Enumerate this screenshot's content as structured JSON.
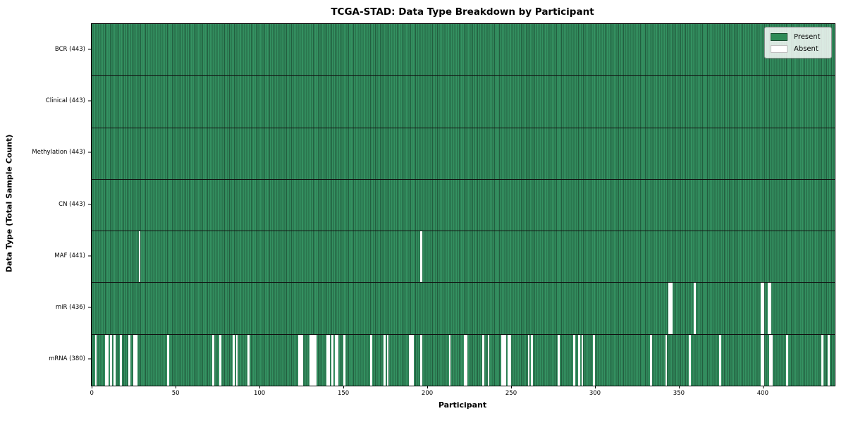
{
  "chart_data": {
    "type": "heatmap",
    "title": "TCGA-STAD: Data Type Breakdown by Participant",
    "xlabel": "Participant",
    "ylabel": "Data Type (Total Sample Count)",
    "x_ticks": [
      0,
      50,
      100,
      150,
      200,
      250,
      300,
      350,
      400
    ],
    "x_range": [
      0,
      443
    ],
    "total_participants": 443,
    "legend_position": "upper right",
    "grid": false,
    "colors": {
      "present": "#2e8b57",
      "present_fill": "#349161",
      "absent": "#ffffff",
      "column_edge": "rgba(0,0,0,0.35)",
      "separator": "#111111"
    },
    "legend": [
      {
        "label": "Present",
        "color": "#2e8b57"
      },
      {
        "label": "Absent",
        "color": "#ffffff"
      }
    ],
    "rows": [
      {
        "name": "BCR",
        "count": 443,
        "label": "BCR (443)",
        "absent": []
      },
      {
        "name": "Clinical",
        "count": 443,
        "label": "Clinical (443)",
        "absent": []
      },
      {
        "name": "Methylation",
        "count": 443,
        "label": "Methylation (443)",
        "absent": []
      },
      {
        "name": "CN",
        "count": 443,
        "label": "CN (443)",
        "absent": []
      },
      {
        "name": "MAF",
        "count": 441,
        "label": "MAF (441)",
        "absent": [
          28,
          196
        ]
      },
      {
        "name": "miR",
        "count": 436,
        "label": "miR (436)",
        "absent": [
          344,
          345,
          359,
          399,
          400,
          403,
          404
        ]
      },
      {
        "name": "mRNA",
        "count": 380,
        "label": "mRNA (380)",
        "absent": [
          2,
          8,
          9,
          11,
          13,
          17,
          22,
          25,
          26,
          45,
          72,
          76,
          84,
          86,
          93,
          123,
          124,
          125,
          130,
          131,
          132,
          133,
          140,
          141,
          143,
          145,
          146,
          150,
          166,
          174,
          176,
          189,
          190,
          191,
          196,
          213,
          222,
          223,
          233,
          236,
          244,
          245,
          246,
          248,
          249,
          260,
          262,
          278,
          287,
          290,
          292,
          299,
          333,
          342,
          356,
          374,
          399,
          400,
          404,
          405,
          414,
          435,
          439
        ]
      }
    ]
  }
}
